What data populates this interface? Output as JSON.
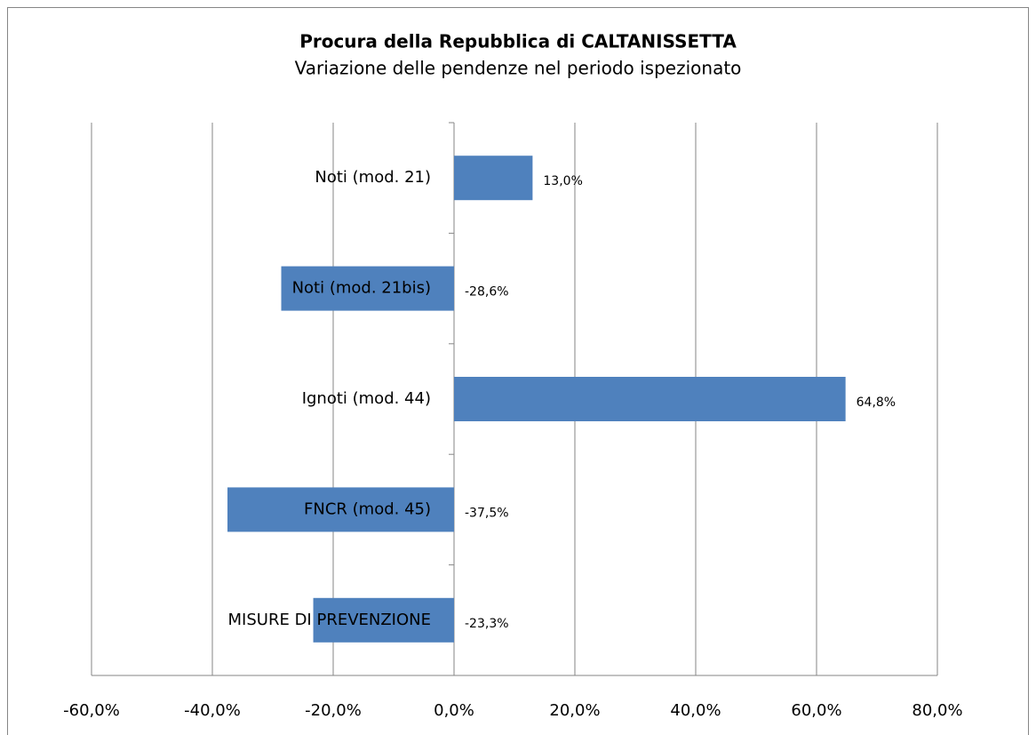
{
  "chart_data": {
    "type": "barh",
    "title": "Procura della Repubblica di CALTANISSETTA",
    "subtitle": "Variazione delle pendenze nel periodo ispezionato",
    "categories": [
      "Noti (mod. 21)",
      "Noti (mod. 21bis)",
      "Ignoti (mod. 44)",
      "FNCR (mod. 45)",
      "MISURE DI PREVENZIONE"
    ],
    "values": [
      13.0,
      -28.6,
      64.8,
      -37.5,
      -23.3
    ],
    "value_labels": [
      "13,0%",
      "-28,6%",
      "64,8%",
      "-37,5%",
      "-23,3%"
    ],
    "color": "#4f81bd",
    "xlim": [
      -60,
      80
    ],
    "xticks": [
      {
        "value": -60,
        "label": "-60,0%"
      },
      {
        "value": -40,
        "label": "-40,0%"
      },
      {
        "value": -20,
        "label": "-20,0%"
      },
      {
        "value": 0,
        "label": "0,0%"
      },
      {
        "value": 20,
        "label": "20,0%"
      },
      {
        "value": 40,
        "label": "40,0%"
      },
      {
        "value": 60,
        "label": "60,0%"
      },
      {
        "value": 80,
        "label": "80,0%"
      }
    ],
    "grid": true
  }
}
